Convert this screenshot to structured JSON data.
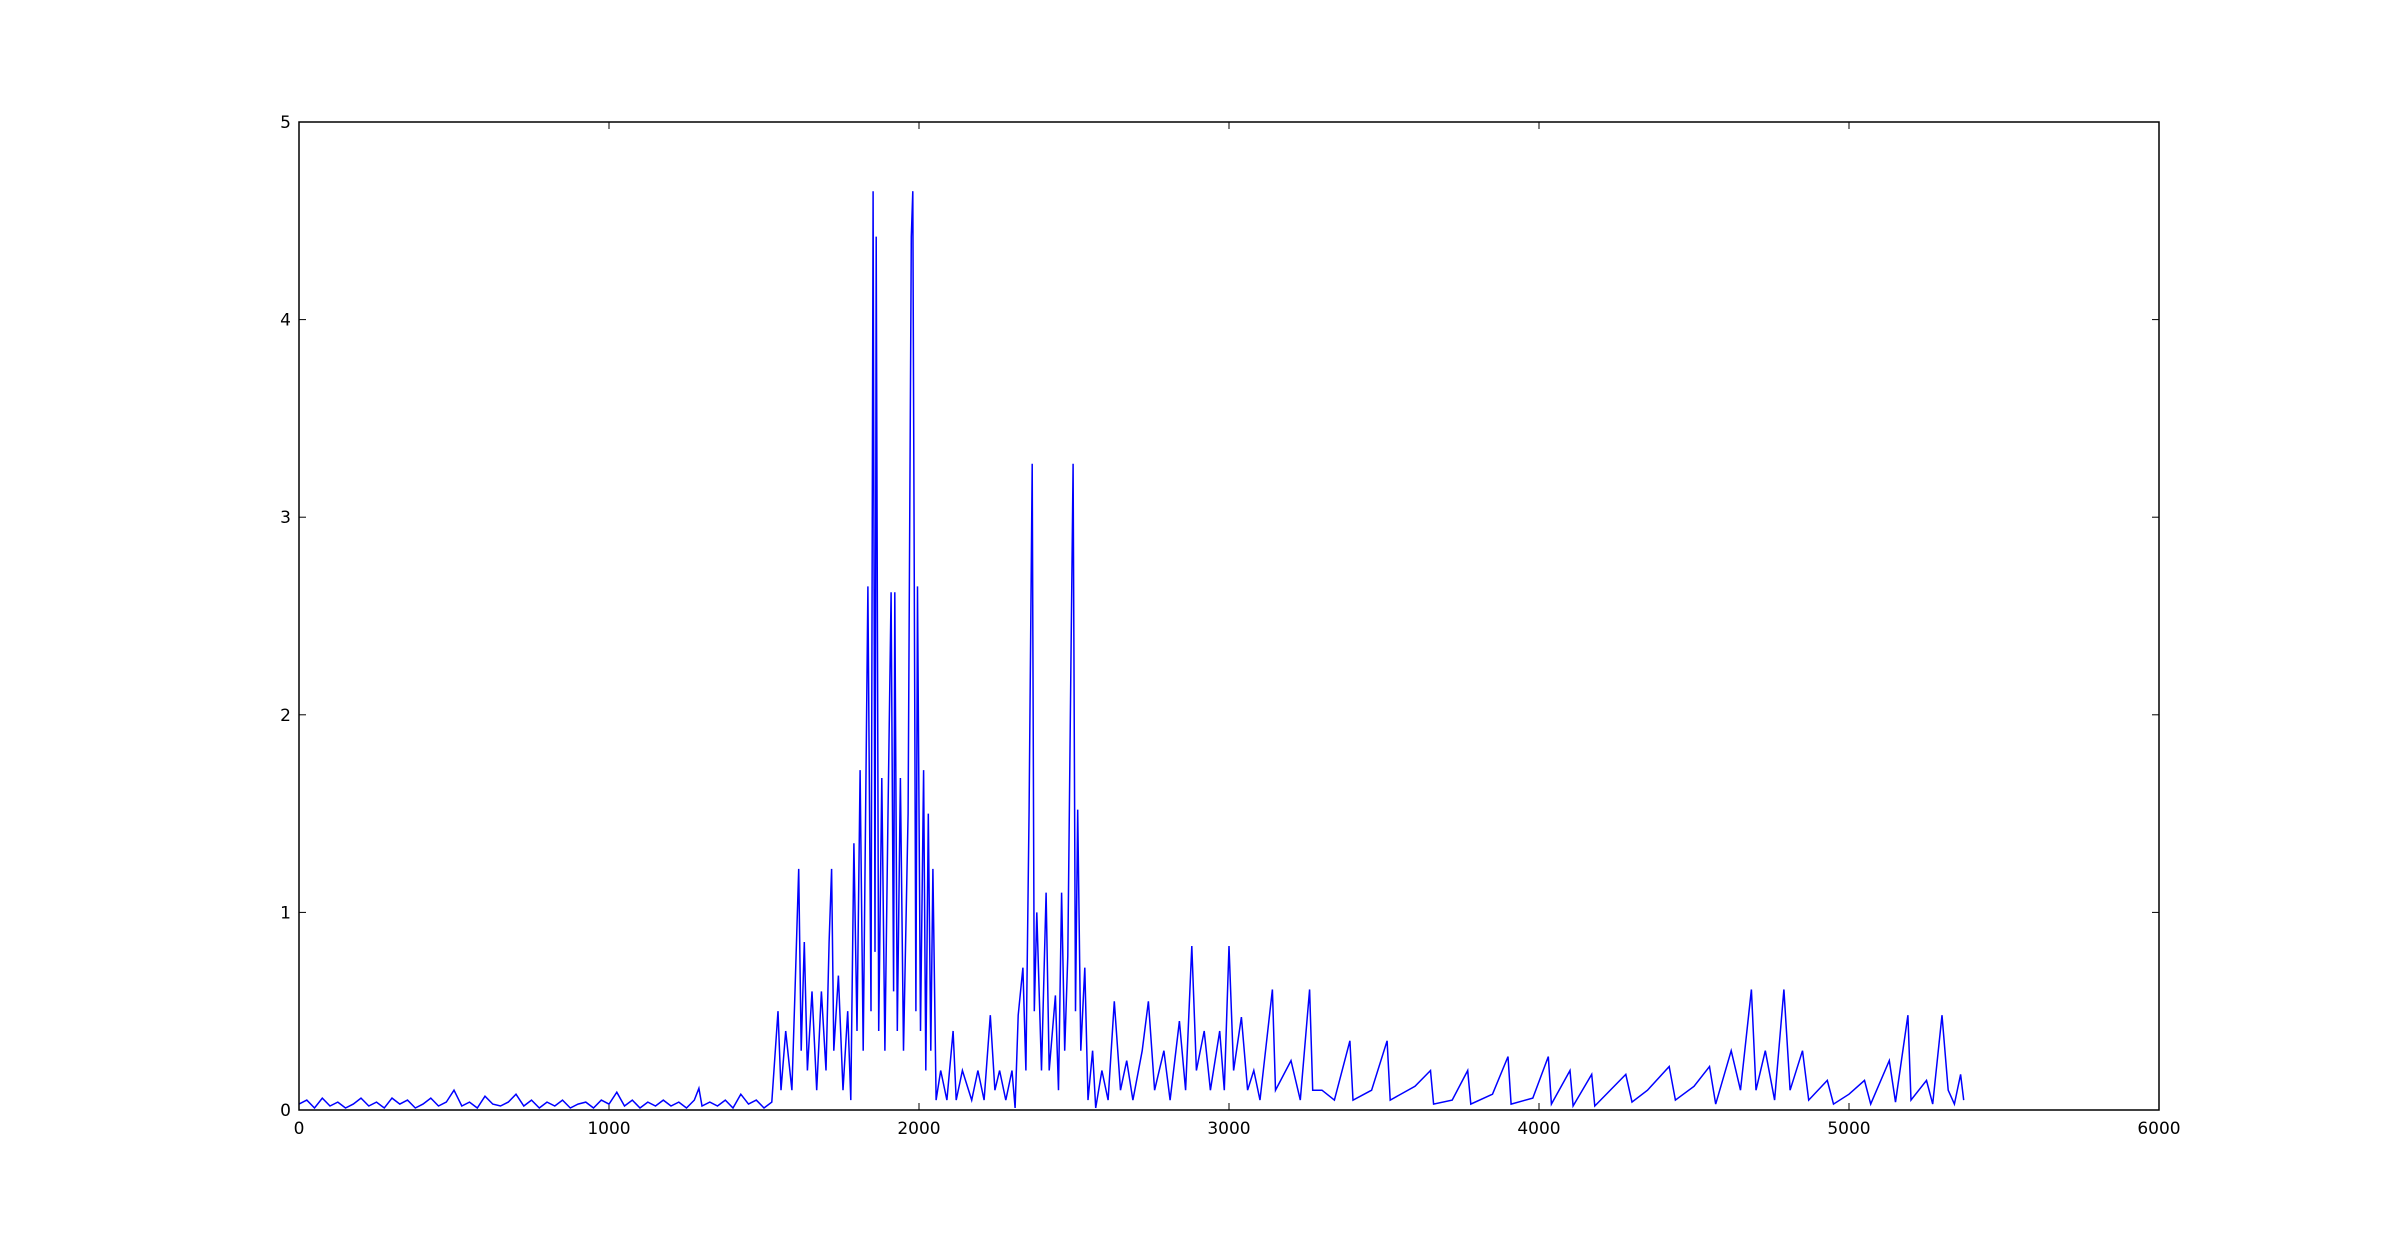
{
  "chart_data": {
    "type": "line",
    "title": "",
    "xlabel": "",
    "ylabel": "",
    "xlim": [
      0,
      6000
    ],
    "ylim": [
      0,
      5
    ],
    "grid": false,
    "x_ticks": [
      "0",
      "1000",
      "2000",
      "3000",
      "4000",
      "5000",
      "6000"
    ],
    "y_ticks": [
      "0",
      "1",
      "2",
      "3",
      "4",
      "5"
    ],
    "line_color": "#0000ff",
    "series": [
      {
        "points": [
          [
            0,
            0.03
          ],
          [
            25,
            0.05
          ],
          [
            50,
            0.01
          ],
          [
            75,
            0.06
          ],
          [
            100,
            0.02
          ],
          [
            125,
            0.04
          ],
          [
            150,
            0.01
          ],
          [
            175,
            0.03
          ],
          [
            200,
            0.06
          ],
          [
            225,
            0.02
          ],
          [
            250,
            0.04
          ],
          [
            275,
            0.01
          ],
          [
            300,
            0.06
          ],
          [
            325,
            0.03
          ],
          [
            350,
            0.05
          ],
          [
            375,
            0.01
          ],
          [
            400,
            0.03
          ],
          [
            425,
            0.06
          ],
          [
            450,
            0.02
          ],
          [
            475,
            0.04
          ],
          [
            500,
            0.1
          ],
          [
            525,
            0.02
          ],
          [
            550,
            0.04
          ],
          [
            575,
            0.01
          ],
          [
            600,
            0.07
          ],
          [
            625,
            0.03
          ],
          [
            650,
            0.02
          ],
          [
            675,
            0.04
          ],
          [
            700,
            0.08
          ],
          [
            725,
            0.02
          ],
          [
            750,
            0.05
          ],
          [
            775,
            0.01
          ],
          [
            800,
            0.04
          ],
          [
            825,
            0.02
          ],
          [
            850,
            0.05
          ],
          [
            875,
            0.01
          ],
          [
            900,
            0.03
          ],
          [
            925,
            0.04
          ],
          [
            950,
            0.01
          ],
          [
            975,
            0.05
          ],
          [
            1000,
            0.03
          ],
          [
            1025,
            0.09
          ],
          [
            1050,
            0.02
          ],
          [
            1075,
            0.05
          ],
          [
            1100,
            0.01
          ],
          [
            1125,
            0.04
          ],
          [
            1150,
            0.02
          ],
          [
            1175,
            0.05
          ],
          [
            1200,
            0.02
          ],
          [
            1225,
            0.04
          ],
          [
            1250,
            0.01
          ],
          [
            1275,
            0.05
          ],
          [
            1290,
            0.11
          ],
          [
            1300,
            0.02
          ],
          [
            1325,
            0.04
          ],
          [
            1350,
            0.02
          ],
          [
            1375,
            0.05
          ],
          [
            1400,
            0.01
          ],
          [
            1425,
            0.08
          ],
          [
            1450,
            0.03
          ],
          [
            1475,
            0.05
          ],
          [
            1500,
            0.01
          ],
          [
            1525,
            0.04
          ],
          [
            1545,
            0.5
          ],
          [
            1555,
            0.1
          ],
          [
            1570,
            0.4
          ],
          [
            1590,
            0.1
          ],
          [
            1600,
            0.6
          ],
          [
            1612,
            1.22
          ],
          [
            1620,
            0.3
          ],
          [
            1630,
            0.85
          ],
          [
            1640,
            0.2
          ],
          [
            1655,
            0.6
          ],
          [
            1670,
            0.1
          ],
          [
            1685,
            0.6
          ],
          [
            1700,
            0.2
          ],
          [
            1710,
            0.85
          ],
          [
            1718,
            1.22
          ],
          [
            1725,
            0.3
          ],
          [
            1740,
            0.68
          ],
          [
            1755,
            0.1
          ],
          [
            1770,
            0.5
          ],
          [
            1780,
            0.05
          ],
          [
            1790,
            1.35
          ],
          [
            1800,
            0.4
          ],
          [
            1810,
            1.72
          ],
          [
            1820,
            0.3
          ],
          [
            1835,
            2.65
          ],
          [
            1845,
            0.5
          ],
          [
            1852,
            4.65
          ],
          [
            1858,
            0.8
          ],
          [
            1862,
            4.42
          ],
          [
            1870,
            0.4
          ],
          [
            1880,
            1.68
          ],
          [
            1890,
            0.3
          ],
          [
            1900,
            1.5
          ],
          [
            1910,
            2.62
          ],
          [
            1918,
            0.6
          ],
          [
            1922,
            2.62
          ],
          [
            1930,
            0.4
          ],
          [
            1940,
            1.68
          ],
          [
            1950,
            0.3
          ],
          [
            1965,
            1.5
          ],
          [
            1975,
            4.42
          ],
          [
            1980,
            4.65
          ],
          [
            1990,
            0.5
          ],
          [
            1995,
            2.65
          ],
          [
            2005,
            0.4
          ],
          [
            2015,
            1.72
          ],
          [
            2022,
            0.2
          ],
          [
            2030,
            1.5
          ],
          [
            2038,
            0.3
          ],
          [
            2045,
            1.22
          ],
          [
            2055,
            0.05
          ],
          [
            2070,
            0.2
          ],
          [
            2090,
            0.05
          ],
          [
            2110,
            0.4
          ],
          [
            2120,
            0.05
          ],
          [
            2140,
            0.2
          ],
          [
            2170,
            0.05
          ],
          [
            2190,
            0.2
          ],
          [
            2210,
            0.05
          ],
          [
            2230,
            0.48
          ],
          [
            2245,
            0.1
          ],
          [
            2260,
            0.2
          ],
          [
            2280,
            0.05
          ],
          [
            2300,
            0.2
          ],
          [
            2310,
            0.01
          ],
          [
            2320,
            0.48
          ],
          [
            2335,
            0.72
          ],
          [
            2345,
            0.2
          ],
          [
            2355,
            1.52
          ],
          [
            2365,
            3.27
          ],
          [
            2372,
            0.5
          ],
          [
            2380,
            1.0
          ],
          [
            2395,
            0.2
          ],
          [
            2410,
            1.1
          ],
          [
            2420,
            0.2
          ],
          [
            2440,
            0.58
          ],
          [
            2450,
            0.1
          ],
          [
            2460,
            1.1
          ],
          [
            2470,
            0.3
          ],
          [
            2480,
            0.78
          ],
          [
            2490,
            2.25
          ],
          [
            2497,
            3.27
          ],
          [
            2505,
            0.5
          ],
          [
            2512,
            1.52
          ],
          [
            2522,
            0.3
          ],
          [
            2535,
            0.72
          ],
          [
            2545,
            0.05
          ],
          [
            2560,
            0.3
          ],
          [
            2570,
            0.01
          ],
          [
            2590,
            0.2
          ],
          [
            2610,
            0.05
          ],
          [
            2630,
            0.55
          ],
          [
            2650,
            0.1
          ],
          [
            2670,
            0.25
          ],
          [
            2690,
            0.05
          ],
          [
            2720,
            0.3
          ],
          [
            2740,
            0.55
          ],
          [
            2760,
            0.1
          ],
          [
            2790,
            0.3
          ],
          [
            2810,
            0.05
          ],
          [
            2840,
            0.45
          ],
          [
            2860,
            0.1
          ],
          [
            2880,
            0.83
          ],
          [
            2895,
            0.2
          ],
          [
            2920,
            0.4
          ],
          [
            2940,
            0.1
          ],
          [
            2970,
            0.4
          ],
          [
            2985,
            0.1
          ],
          [
            3000,
            0.83
          ],
          [
            3015,
            0.2
          ],
          [
            3040,
            0.47
          ],
          [
            3060,
            0.1
          ],
          [
            3080,
            0.2
          ],
          [
            3100,
            0.05
          ],
          [
            3140,
            0.61
          ],
          [
            3150,
            0.1
          ],
          [
            3200,
            0.25
          ],
          [
            3230,
            0.05
          ],
          [
            3260,
            0.61
          ],
          [
            3270,
            0.1
          ],
          [
            3300,
            0.1
          ],
          [
            3340,
            0.05
          ],
          [
            3390,
            0.35
          ],
          [
            3400,
            0.05
          ],
          [
            3460,
            0.1
          ],
          [
            3510,
            0.35
          ],
          [
            3520,
            0.05
          ],
          [
            3600,
            0.12
          ],
          [
            3650,
            0.2
          ],
          [
            3660,
            0.03
          ],
          [
            3720,
            0.05
          ],
          [
            3770,
            0.2
          ],
          [
            3780,
            0.03
          ],
          [
            3850,
            0.08
          ],
          [
            3900,
            0.27
          ],
          [
            3910,
            0.03
          ],
          [
            3980,
            0.06
          ],
          [
            4030,
            0.27
          ],
          [
            4040,
            0.03
          ],
          [
            4100,
            0.2
          ],
          [
            4110,
            0.02
          ],
          [
            4170,
            0.18
          ],
          [
            4180,
            0.02
          ],
          [
            4280,
            0.18
          ],
          [
            4300,
            0.04
          ],
          [
            4350,
            0.1
          ],
          [
            4420,
            0.22
          ],
          [
            4440,
            0.05
          ],
          [
            4500,
            0.12
          ],
          [
            4550,
            0.22
          ],
          [
            4570,
            0.03
          ],
          [
            4620,
            0.3
          ],
          [
            4650,
            0.1
          ],
          [
            4685,
            0.61
          ],
          [
            4700,
            0.1
          ],
          [
            4730,
            0.3
          ],
          [
            4760,
            0.05
          ],
          [
            4790,
            0.61
          ],
          [
            4810,
            0.1
          ],
          [
            4850,
            0.3
          ],
          [
            4870,
            0.05
          ],
          [
            4930,
            0.15
          ],
          [
            4950,
            0.03
          ],
          [
            5000,
            0.08
          ],
          [
            5050,
            0.15
          ],
          [
            5070,
            0.03
          ],
          [
            5130,
            0.25
          ],
          [
            5150,
            0.04
          ],
          [
            5190,
            0.48
          ],
          [
            5200,
            0.05
          ],
          [
            5250,
            0.15
          ],
          [
            5270,
            0.03
          ],
          [
            5300,
            0.48
          ],
          [
            5320,
            0.1
          ],
          [
            5340,
            0.03
          ],
          [
            5360,
            0.18
          ],
          [
            5370,
            0.05
          ]
        ]
      }
    ]
  }
}
